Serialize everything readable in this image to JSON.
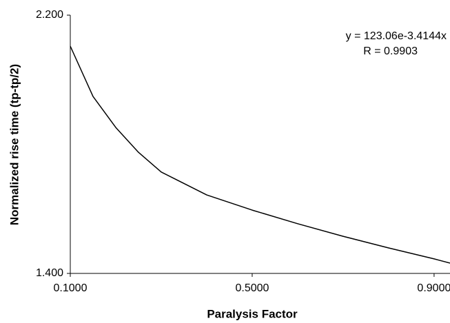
{
  "chart_data": {
    "type": "line",
    "xlabel": "Paralysis Factor",
    "ylabel": "Normalized rise time (tp-tp/2)",
    "annotations": [
      "y = 123.06e-3.4144x",
      "R = 0.9903"
    ],
    "x": [
      0.1,
      0.15,
      0.2,
      0.25,
      0.3,
      0.4,
      0.5,
      0.6,
      0.7,
      0.8,
      0.9,
      0.935
    ],
    "series": [
      {
        "color": "#000000",
        "values": [
          2.104,
          1.948,
          1.852,
          1.775,
          1.714,
          1.643,
          1.596,
          1.554,
          1.515,
          1.479,
          1.445,
          1.432
        ]
      }
    ],
    "xlim": [
      0.1,
      0.935
    ],
    "ylim": [
      1.4,
      2.2
    ],
    "xticks": [
      {
        "value": 0.1,
        "label": "0.1000"
      },
      {
        "value": 0.5,
        "label": "0.5000"
      },
      {
        "value": 0.9,
        "label": "0.9000"
      }
    ],
    "yticks": [
      {
        "value": 1.4,
        "label": "1.400"
      },
      {
        "value": 2.2,
        "label": "2.200"
      }
    ],
    "grid": false
  }
}
